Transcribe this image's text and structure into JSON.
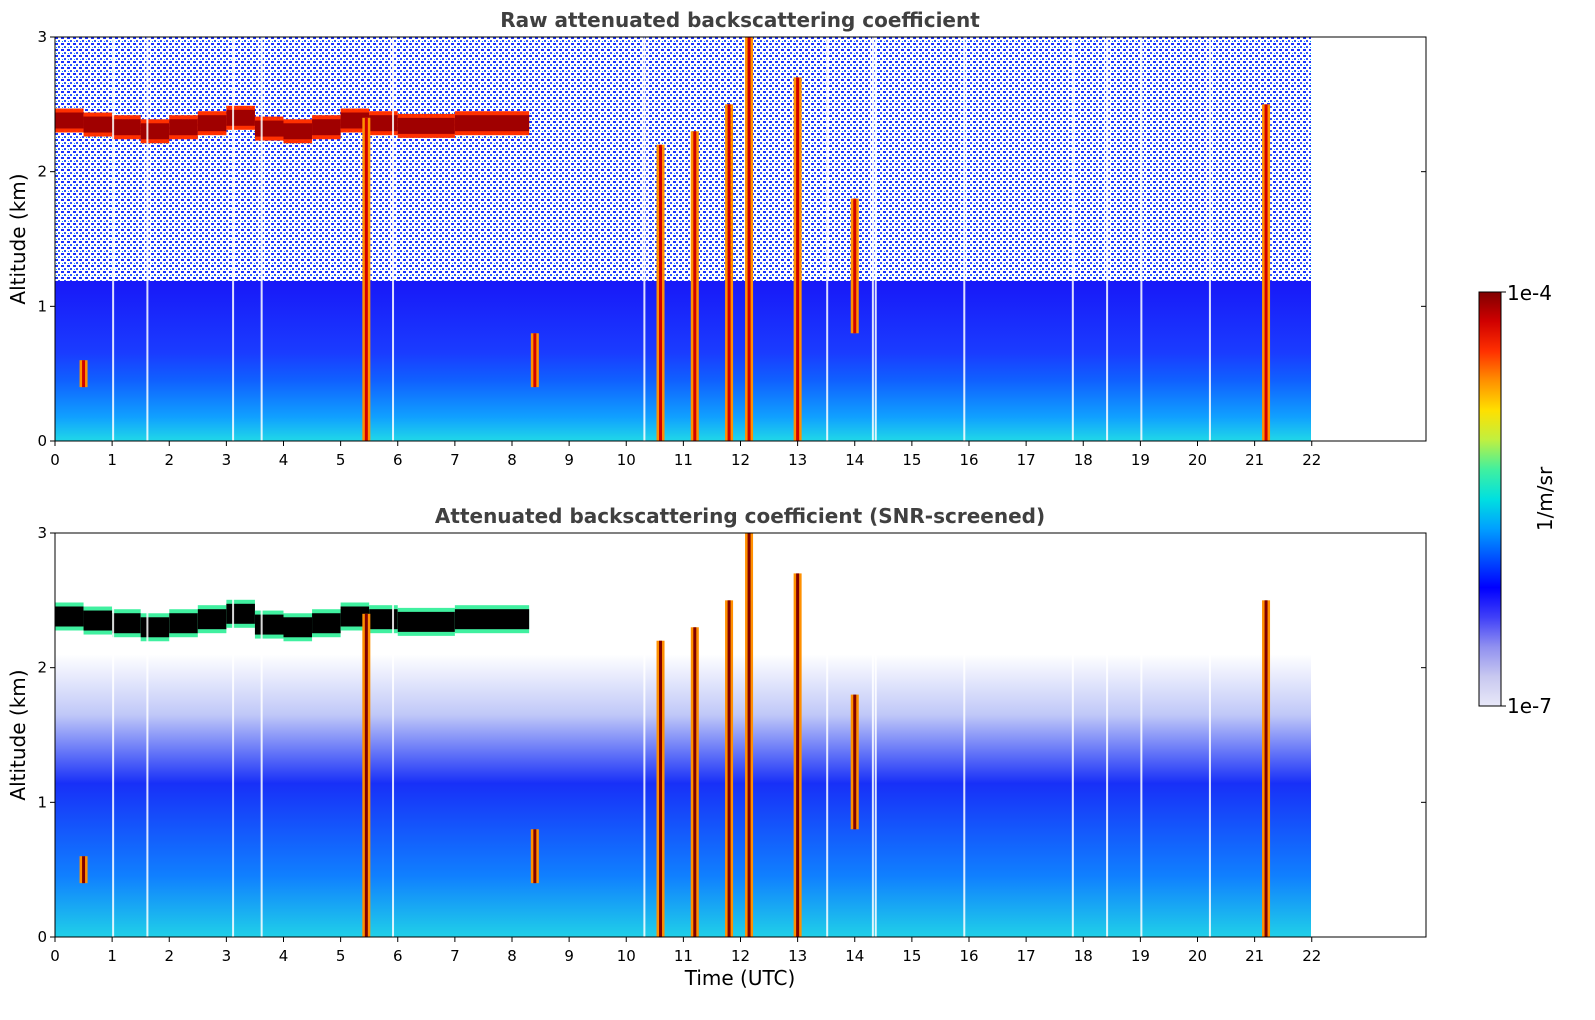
{
  "chart_data": [
    {
      "type": "heatmap",
      "title": "Raw attenuated backscattering coefficient",
      "xlabel": "",
      "ylabel": "Altitude (km)",
      "xlim": [
        0,
        24
      ],
      "ylim": [
        0,
        3
      ],
      "xticks": [
        0,
        1,
        2,
        3,
        4,
        5,
        6,
        7,
        8,
        9,
        10,
        11,
        12,
        13,
        14,
        15,
        16,
        17,
        18,
        19,
        20,
        21,
        22
      ],
      "yticks": [
        0,
        1,
        2,
        3
      ],
      "data_extent_hours": [
        0,
        22
      ],
      "cloud_layer": {
        "altitude_km": [
          2.38,
          2.35,
          2.33,
          2.3,
          2.33,
          2.36,
          2.4,
          2.32,
          2.3,
          2.33,
          2.38,
          2.36,
          2.34,
          2.36,
          2.3
        ],
        "time_h": [
          0,
          0.5,
          1,
          1.5,
          2,
          2.5,
          3,
          3.5,
          4,
          4.5,
          5,
          5.5,
          6,
          7,
          8.3
        ]
      }
    },
    {
      "type": "heatmap",
      "title": "Attenuated backscattering coefficient (SNR-screened)",
      "xlabel": "Time (UTC)",
      "ylabel": "Altitude (km)",
      "xlim": [
        0,
        24
      ],
      "ylim": [
        0,
        3
      ],
      "xticks": [
        0,
        1,
        2,
        3,
        4,
        5,
        6,
        7,
        8,
        9,
        10,
        11,
        12,
        13,
        14,
        15,
        16,
        17,
        18,
        19,
        20,
        21,
        22
      ],
      "yticks": [
        0,
        1,
        2,
        3
      ],
      "data_extent_hours": [
        0,
        22
      ]
    }
  ],
  "colorbar": {
    "label": "1/m/sr",
    "max_label": "1e-4",
    "min_label": "1e-7",
    "range": [
      1e-07,
      0.0001
    ],
    "scale": "log",
    "colors": [
      "#e8e8f8",
      "#c8c8f0",
      "#9090f0",
      "#4040f8",
      "#0000ff",
      "#0050ff",
      "#00a0ff",
      "#00e0e0",
      "#40f0a0",
      "#c0f040",
      "#ffe000",
      "#ff9000",
      "#ff3000",
      "#d00000",
      "#800000"
    ]
  }
}
